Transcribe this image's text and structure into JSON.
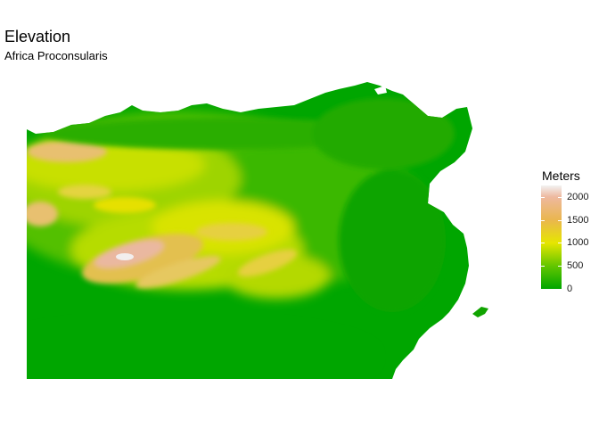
{
  "title": "Elevation",
  "subtitle": "Africa Proconsularis",
  "legend": {
    "title": "Meters",
    "ticks": [
      {
        "value": 2000,
        "label": "2000"
      },
      {
        "value": 1500,
        "label": "1500"
      },
      {
        "value": 1000,
        "label": "1000"
      },
      {
        "value": 500,
        "label": "500"
      },
      {
        "value": 0,
        "label": "0"
      }
    ],
    "range": [
      0,
      2250
    ],
    "color_stops": [
      {
        "value": 0,
        "color": "#00a600"
      },
      {
        "value": 500,
        "color": "#63c600"
      },
      {
        "value": 1000,
        "color": "#e6e600"
      },
      {
        "value": 1500,
        "color": "#eab64e"
      },
      {
        "value": 2000,
        "color": "#eeb99f"
      },
      {
        "value": 2250,
        "color": "#f2f2f2"
      }
    ]
  },
  "colors": {
    "background": "#ffffff",
    "lowland": "#00a600",
    "midland": "#63c600",
    "highland": "#e6e600",
    "mountain": "#eab64e",
    "peak": "#f2f2f2"
  }
}
